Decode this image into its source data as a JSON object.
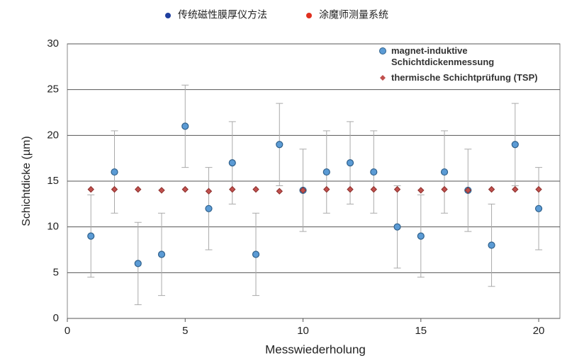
{
  "chart_data": {
    "type": "scatter",
    "top_legend": [
      "传统磁性膜厚仪方法",
      "涂魔师测量系统"
    ],
    "xlabel": "Messwiederholung",
    "ylabel": "Schichtdicke (µm)",
    "x": [
      1,
      2,
      3,
      4,
      5,
      6,
      7,
      8,
      9,
      10,
      11,
      12,
      13,
      14,
      15,
      16,
      17,
      18,
      19,
      20
    ],
    "series": [
      {
        "name": "magnet-induktive Schichtdickenmessung",
        "color": "#5b9bd5",
        "marker": "circle",
        "values": [
          9,
          16,
          6,
          7,
          21,
          12,
          17,
          7,
          19,
          14,
          16,
          17,
          16,
          10,
          9,
          16,
          14,
          8,
          19,
          12
        ],
        "errors": [
          4.5,
          4.5,
          4.5,
          4.5,
          4.5,
          4.5,
          4.5,
          4.5,
          4.5,
          4.5,
          4.5,
          4.5,
          4.5,
          4.5,
          4.5,
          4.5,
          4.5,
          4.5,
          4.5,
          4.5
        ]
      },
      {
        "name": "thermische Schichtprüfung (TSP)",
        "color": "#c0504d",
        "marker": "diamond",
        "values": [
          14.1,
          14.1,
          14.1,
          14.0,
          14.1,
          13.9,
          14.1,
          14.1,
          13.9,
          14.0,
          14.1,
          14.1,
          14.1,
          14.1,
          14.0,
          14.1,
          14.0,
          14.1,
          14.1,
          14.1
        ]
      }
    ],
    "legend_colors": [
      "#1f3f9f",
      "#e03020"
    ],
    "xlim": [
      0,
      20.9
    ],
    "xticks": [
      0,
      5,
      10,
      15,
      20
    ],
    "ylim": [
      0,
      30
    ],
    "yticks": [
      0,
      5,
      10,
      15,
      20,
      25,
      30
    ],
    "grid": true
  }
}
